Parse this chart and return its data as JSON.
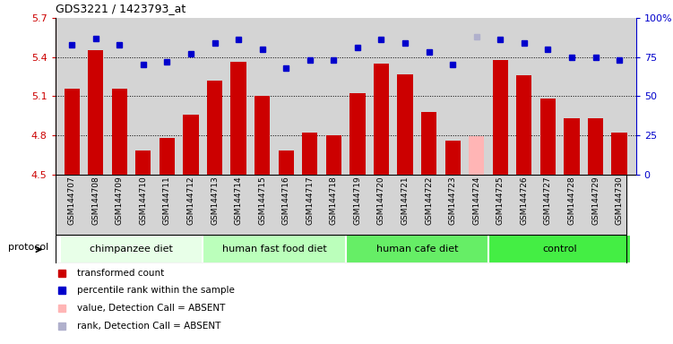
{
  "title": "GDS3221 / 1423793_at",
  "samples": [
    "GSM144707",
    "GSM144708",
    "GSM144709",
    "GSM144710",
    "GSM144711",
    "GSM144712",
    "GSM144713",
    "GSM144714",
    "GSM144715",
    "GSM144716",
    "GSM144717",
    "GSM144718",
    "GSM144719",
    "GSM144720",
    "GSM144721",
    "GSM144722",
    "GSM144723",
    "GSM144724",
    "GSM144725",
    "GSM144726",
    "GSM144727",
    "GSM144728",
    "GSM144729",
    "GSM144730"
  ],
  "values": [
    5.16,
    5.45,
    5.16,
    4.68,
    4.78,
    4.96,
    5.22,
    5.36,
    5.1,
    4.68,
    4.82,
    4.8,
    5.12,
    5.35,
    5.27,
    4.98,
    4.76,
    4.79,
    5.38,
    5.26,
    5.08,
    4.93,
    4.93,
    4.82
  ],
  "absent_value_indices": [
    17
  ],
  "ranks": [
    83,
    87,
    83,
    70,
    72,
    77,
    84,
    86,
    80,
    68,
    73,
    73,
    81,
    86,
    84,
    78,
    70,
    88,
    86,
    84,
    80,
    75,
    75,
    73
  ],
  "absent_rank_indices": [
    17
  ],
  "bar_color": "#cc0000",
  "bar_color_absent": "#ffb5b5",
  "rank_color": "#0000cc",
  "rank_color_absent": "#b0b0cc",
  "ylim_left": [
    4.5,
    5.7
  ],
  "ylim_right": [
    0,
    100
  ],
  "yticks_left": [
    4.5,
    4.8,
    5.1,
    5.4,
    5.7
  ],
  "yticks_right": [
    0,
    25,
    50,
    75,
    100
  ],
  "dotted_lines": [
    4.8,
    5.1,
    5.4
  ],
  "groups": [
    {
      "label": "chimpanzee diet",
      "start": 0,
      "end": 5,
      "color": "#e8ffe8"
    },
    {
      "label": "human fast food diet",
      "start": 6,
      "end": 11,
      "color": "#bbffbb"
    },
    {
      "label": "human cafe diet",
      "start": 12,
      "end": 17,
      "color": "#66ee66"
    },
    {
      "label": "control",
      "start": 18,
      "end": 23,
      "color": "#44ee44"
    }
  ],
  "legend": [
    {
      "label": "transformed count",
      "color": "#cc0000"
    },
    {
      "label": "percentile rank within the sample",
      "color": "#0000cc"
    },
    {
      "label": "value, Detection Call = ABSENT",
      "color": "#ffb5b5"
    },
    {
      "label": "rank, Detection Call = ABSENT",
      "color": "#b0b0cc"
    }
  ],
  "protocol_label": "protocol",
  "bg_color": "#d4d4d4",
  "title_fontsize": 9,
  "tick_label_fontsize": 6.5,
  "legend_fontsize": 7.5,
  "group_fontsize": 8.0
}
